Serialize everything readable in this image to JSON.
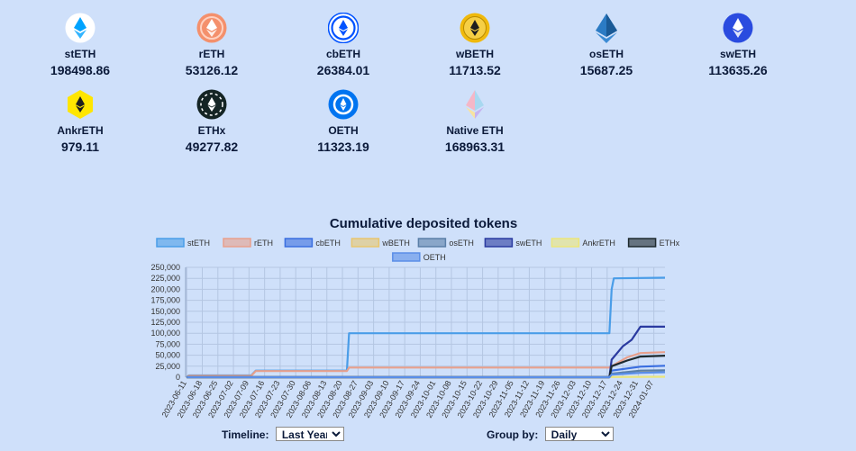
{
  "tokens": [
    {
      "name": "stETH",
      "value": "198498.86",
      "icon": "steth-icon",
      "color": "#00a3ff"
    },
    {
      "name": "rETH",
      "value": "53126.12",
      "icon": "reth-icon",
      "color": "#f4906c"
    },
    {
      "name": "cbETH",
      "value": "26384.01",
      "icon": "cbeth-icon",
      "color": "#0052ff"
    },
    {
      "name": "wBETH",
      "value": "11713.52",
      "icon": "wbeth-icon",
      "color": "#f0b90b"
    },
    {
      "name": "osETH",
      "value": "15687.25",
      "icon": "oseth-icon",
      "color": "#1f6fb3"
    },
    {
      "name": "swETH",
      "value": "113635.26",
      "icon": "sweth-icon",
      "color": "#2a4bdf"
    },
    {
      "name": "AnkrETH",
      "value": "979.11",
      "icon": "ankreth-icon",
      "color": "#ffe600"
    },
    {
      "name": "ETHx",
      "value": "49277.82",
      "icon": "ethx-icon",
      "color": "#0f1a1a"
    },
    {
      "name": "OETH",
      "value": "11323.19",
      "icon": "oeth-icon",
      "color": "#0074f0"
    },
    {
      "name": "Native ETH",
      "value": "168963.31",
      "icon": "native-eth-icon",
      "color": "#8a92b2"
    }
  ],
  "chart": {
    "title": "Cumulative deposited tokens"
  },
  "chart_data": {
    "type": "line",
    "title": "Cumulative deposited tokens",
    "xlabel": "",
    "ylabel": "",
    "ylim": [
      0,
      250000
    ],
    "yticks": [
      "0",
      "25,000",
      "50,000",
      "75,000",
      "100,000",
      "125,000",
      "150,000",
      "175,000",
      "200,000",
      "225,000",
      "250,000"
    ],
    "grid": true,
    "legend": "top",
    "x": [
      "2023-06-11",
      "2023-06-18",
      "2023-06-25",
      "2023-07-02",
      "2023-07-09",
      "2023-07-16",
      "2023-07-23",
      "2023-07-30",
      "2023-08-06",
      "2023-08-13",
      "2023-08-20",
      "2023-08-27",
      "2023-09-03",
      "2023-09-10",
      "2023-09-17",
      "2023-09-24",
      "2023-10-01",
      "2023-10-08",
      "2023-10-15",
      "2023-10-22",
      "2023-10-29",
      "2023-11-05",
      "2023-11-12",
      "2023-11-19",
      "2023-11-26",
      "2023-12-03",
      "2023-12-10",
      "2023-12-17",
      "2023-12-24",
      "2023-12-31",
      "2024-01-07"
    ],
    "series": [
      {
        "name": "stETH",
        "color": "#4a9de8",
        "points": [
          [
            "2023-06-11",
            0
          ],
          [
            "2023-06-12",
            4000
          ],
          [
            "2023-07-10",
            4000
          ],
          [
            "2023-07-12",
            15000
          ],
          [
            "2023-08-22",
            15000
          ],
          [
            "2023-08-23",
            100000
          ],
          [
            "2023-12-18",
            100000
          ],
          [
            "2023-12-19",
            200000
          ],
          [
            "2023-12-20",
            225000
          ],
          [
            "2024-01-12",
            226500
          ]
        ]
      },
      {
        "name": "rETH",
        "color": "#e8a08c",
        "points": [
          [
            "2023-06-11",
            0
          ],
          [
            "2023-06-12",
            3000
          ],
          [
            "2023-07-10",
            3000
          ],
          [
            "2023-07-12",
            14000
          ],
          [
            "2023-08-22",
            14000
          ],
          [
            "2023-08-23",
            22000
          ],
          [
            "2023-12-18",
            22000
          ],
          [
            "2023-12-19",
            25000
          ],
          [
            "2023-12-26",
            45000
          ],
          [
            "2024-01-01",
            55000
          ],
          [
            "2024-01-12",
            57000
          ]
        ]
      },
      {
        "name": "cbETH",
        "color": "#3a6ee0",
        "points": [
          [
            "2023-06-11",
            0
          ],
          [
            "2023-12-18",
            0
          ],
          [
            "2023-12-19",
            15000
          ],
          [
            "2024-01-01",
            24000
          ],
          [
            "2024-01-12",
            26000
          ]
        ]
      },
      {
        "name": "wBETH",
        "color": "#e8c66e",
        "points": [
          [
            "2023-06-11",
            0
          ],
          [
            "2023-12-18",
            0
          ],
          [
            "2023-12-19",
            6000
          ],
          [
            "2024-01-01",
            11000
          ],
          [
            "2024-01-12",
            11700
          ]
        ]
      },
      {
        "name": "osETH",
        "color": "#5a7fa8",
        "points": [
          [
            "2023-06-11",
            0
          ],
          [
            "2023-12-18",
            0
          ],
          [
            "2023-12-19",
            8000
          ],
          [
            "2024-01-01",
            15000
          ],
          [
            "2024-01-12",
            15700
          ]
        ]
      },
      {
        "name": "swETH",
        "color": "#2a3aa0",
        "points": [
          [
            "2023-06-11",
            0
          ],
          [
            "2023-12-18",
            0
          ],
          [
            "2023-12-19",
            40000
          ],
          [
            "2023-12-24",
            70000
          ],
          [
            "2023-12-28",
            85000
          ],
          [
            "2024-01-01",
            115000
          ],
          [
            "2024-01-12",
            115000
          ]
        ]
      },
      {
        "name": "AnkrETH",
        "color": "#ece67a",
        "points": [
          [
            "2023-06-11",
            0
          ],
          [
            "2023-12-18",
            0
          ],
          [
            "2023-12-19",
            500
          ],
          [
            "2024-01-12",
            1000
          ]
        ]
      },
      {
        "name": "ETHx",
        "color": "#1e2a2e",
        "points": [
          [
            "2023-06-11",
            0
          ],
          [
            "2023-12-18",
            0
          ],
          [
            "2023-12-19",
            25000
          ],
          [
            "2023-12-26",
            38000
          ],
          [
            "2024-01-01",
            47000
          ],
          [
            "2024-01-12",
            49000
          ]
        ]
      },
      {
        "name": "OETH",
        "color": "#5a8ee8",
        "points": [
          [
            "2023-06-11",
            0
          ],
          [
            "2023-12-18",
            0
          ],
          [
            "2023-12-19",
            6000
          ],
          [
            "2024-01-01",
            10000
          ],
          [
            "2024-01-12",
            11300
          ]
        ]
      }
    ]
  },
  "controls": {
    "timeline_label": "Timeline:",
    "timeline_value": "Last Year",
    "groupby_label": "Group by:",
    "groupby_value": "Daily"
  }
}
